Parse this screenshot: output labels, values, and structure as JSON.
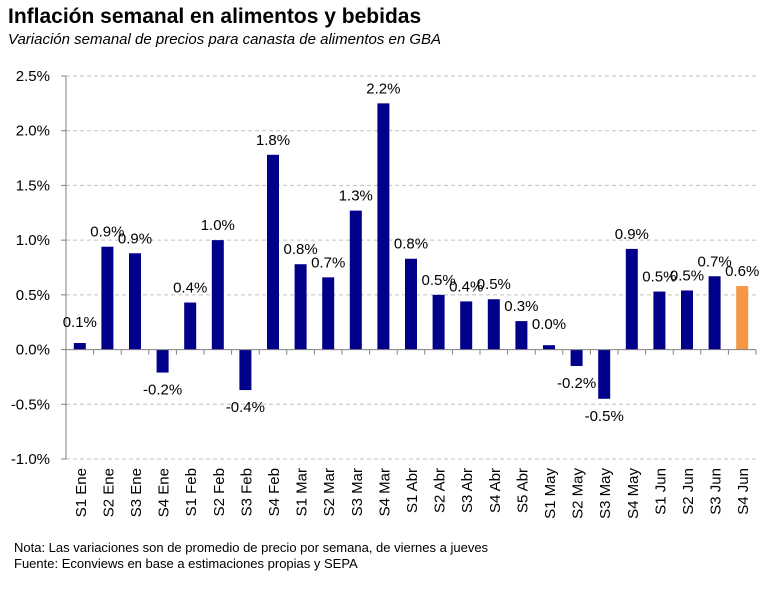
{
  "header": {
    "title": "Inflación semanal en alimentos y bebidas",
    "subtitle": "Variación semanal de precios para canasta de alimentos en GBA"
  },
  "notes": {
    "nota": "Nota: Las variaciones son de promedio de precio por semana, de viernes a jueves",
    "fuente": "Fuente: Econviews en base a estimaciones propias  y SEPA"
  },
  "colors": {
    "bar": "#00008b",
    "highlight": "#f79646",
    "grid": "#c0c0c0",
    "axis": "#808080"
  },
  "chart_data": {
    "type": "bar",
    "title": "Inflación semanal en alimentos y bebidas",
    "xlabel": "",
    "ylabel": "",
    "ylim": [
      -1.0,
      2.5
    ],
    "yticks": [
      "-1.0%",
      "-0.5%",
      "0.0%",
      "0.5%",
      "1.0%",
      "1.5%",
      "2.0%",
      "2.5%"
    ],
    "ytick_values": [
      -1.0,
      -0.5,
      0.0,
      0.5,
      1.0,
      1.5,
      2.0,
      2.5
    ],
    "grid": true,
    "categories": [
      "S1 Ene",
      "S2 Ene",
      "S3 Ene",
      "S4 Ene",
      "S1 Feb",
      "S2 Feb",
      "S3 Feb",
      "S4 Feb",
      "S1 Mar",
      "S2 Mar",
      "S3 Mar",
      "S4 Mar",
      "S1 Abr",
      "S2 Abr",
      "S3 Abr",
      "S4 Abr",
      "S5 Abr",
      "S1 May",
      "S2 May",
      "S3 May",
      "S4 May",
      "S1 Jun",
      "S2 Jun",
      "S3 Jun",
      "S4 Jun"
    ],
    "values": [
      0.06,
      0.94,
      0.88,
      -0.21,
      0.43,
      1.0,
      -0.37,
      1.78,
      0.78,
      0.66,
      1.27,
      2.25,
      0.83,
      0.5,
      0.44,
      0.46,
      0.26,
      0.04,
      -0.15,
      -0.45,
      0.92,
      0.53,
      0.54,
      0.67,
      0.58
    ],
    "data_labels": [
      "0.1%",
      "0.9%",
      "0.9%",
      "-0.2%",
      "0.4%",
      "1.0%",
      "-0.4%",
      "1.8%",
      "0.8%",
      "0.7%",
      "1.3%",
      "2.2%",
      "0.8%",
      "0.5%",
      "0.4%",
      "0.5%",
      "0.3%",
      "0.0%",
      "-0.2%",
      "-0.5%",
      "0.9%",
      "0.5%",
      "0.5%",
      "0.7%",
      "0.6%"
    ],
    "highlight_index": 24
  }
}
